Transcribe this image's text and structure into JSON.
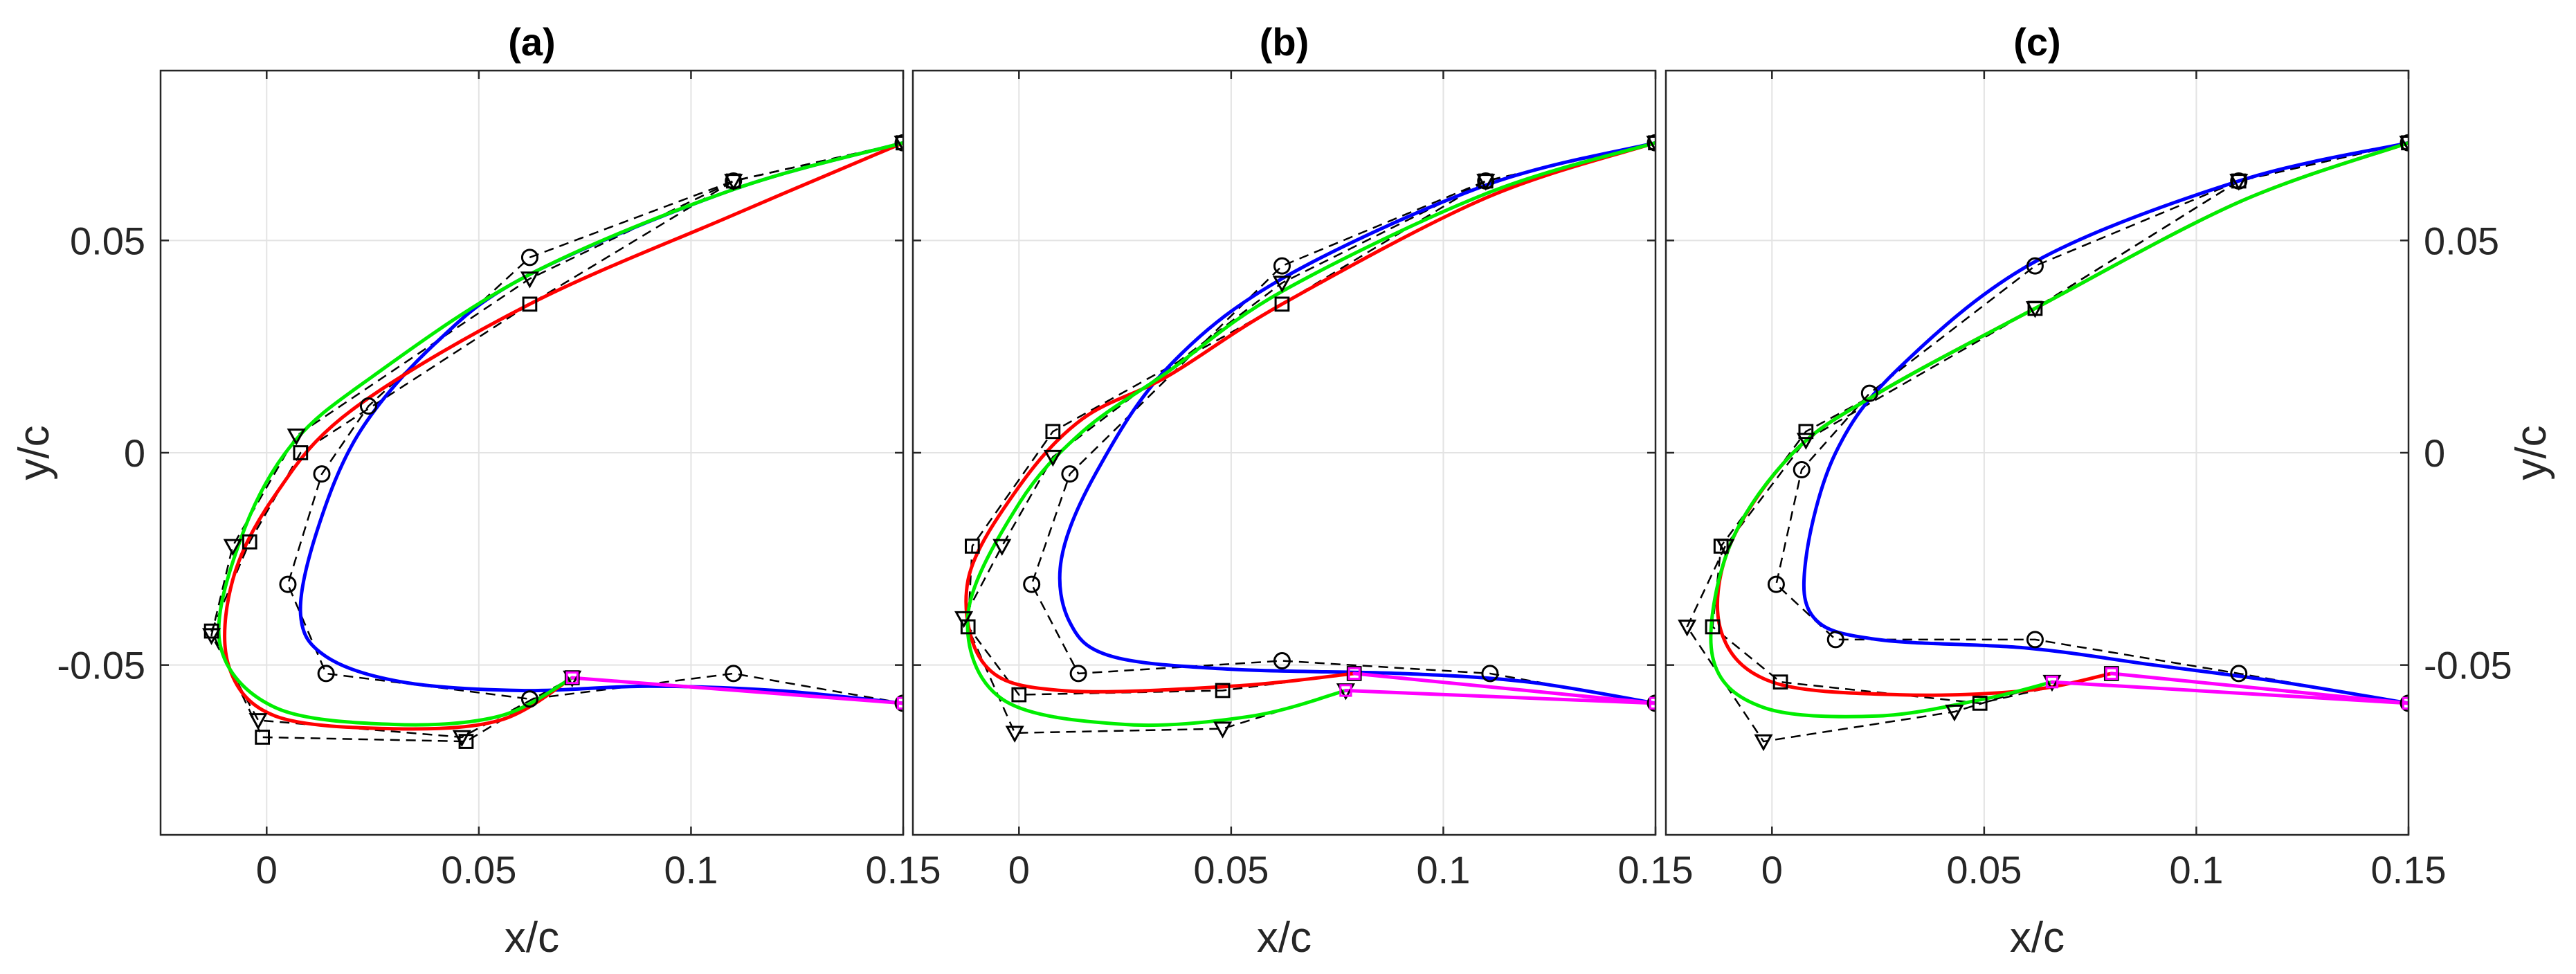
{
  "chart_data": {
    "type": "line",
    "layout": "three panels side by side",
    "xlabel": "x/c",
    "ylabel": "y/c",
    "xlim": [
      -0.025,
      0.15
    ],
    "ylim": [
      -0.09,
      0.09
    ],
    "x_ticks": [
      0,
      0.05,
      0.1,
      0.15
    ],
    "x_tick_labels": [
      "0",
      "0.05",
      "0.1",
      "0.15"
    ],
    "y_ticks": [
      -0.05,
      0,
      0.05
    ],
    "y_tick_labels": [
      "-0.05",
      "0",
      "0.05"
    ],
    "grid": true,
    "colors": {
      "blue": "#0000ff",
      "red": "#ff0000",
      "green": "#00ee00",
      "magenta": "#ff00ff",
      "control": "#000000",
      "grid": "#e3e3e3"
    },
    "panels": [
      {
        "title": "(a)",
        "ylabel_side": "left",
        "curves": [
          {
            "color": "blue",
            "points": [
              [
                0.15,
                0.073
              ],
              [
                0.11,
                0.062
              ],
              [
                0.062,
                0.042
              ],
              [
                0.04,
                0.026
              ],
              [
                0.022,
                0.005
              ],
              [
                0.012,
                -0.018
              ],
              [
                0.008,
                -0.038
              ],
              [
                0.014,
                -0.048
              ],
              [
                0.032,
                -0.054
              ],
              [
                0.06,
                -0.056
              ],
              [
                0.09,
                -0.055
              ],
              [
                0.12,
                -0.056
              ],
              [
                0.15,
                -0.059
              ]
            ]
          },
          {
            "color": "red",
            "points": [
              [
                0.15,
                0.073
              ],
              [
                0.11,
                0.056
              ],
              [
                0.062,
                0.035
              ],
              [
                0.02,
                0.01
              ],
              [
                0.002,
                -0.01
              ],
              [
                -0.008,
                -0.03
              ],
              [
                -0.009,
                -0.05
              ],
              [
                0.002,
                -0.062
              ],
              [
                0.03,
                -0.065
              ],
              [
                0.055,
                -0.063
              ],
              [
                0.072,
                -0.053
              ]
            ]
          },
          {
            "color": "green",
            "points": [
              [
                0.15,
                0.073
              ],
              [
                0.11,
                0.062
              ],
              [
                0.062,
                0.042
              ],
              [
                0.025,
                0.018
              ],
              [
                0.006,
                0.002
              ],
              [
                -0.006,
                -0.02
              ],
              [
                -0.011,
                -0.045
              ],
              [
                0.002,
                -0.06
              ],
              [
                0.03,
                -0.064
              ],
              [
                0.055,
                -0.062
              ],
              [
                0.072,
                -0.053
              ]
            ]
          },
          {
            "color": "magenta",
            "points": [
              [
                0.072,
                -0.053
              ],
              [
                0.15,
                -0.059
              ]
            ]
          }
        ],
        "polygons": [
          {
            "marker": "circle",
            "points": [
              [
                0.15,
                0.073
              ],
              [
                0.11,
                0.064
              ],
              [
                0.062,
                0.046
              ],
              [
                0.024,
                0.011
              ],
              [
                0.013,
                -0.005
              ],
              [
                0.005,
                -0.031
              ],
              [
                0.014,
                -0.052
              ],
              [
                0.062,
                -0.058
              ],
              [
                0.11,
                -0.052
              ],
              [
                0.15,
                -0.059
              ]
            ]
          },
          {
            "marker": "square",
            "points": [
              [
                0.15,
                0.073
              ],
              [
                0.11,
                0.064
              ],
              [
                0.062,
                0.035
              ],
              [
                0.008,
                0.0
              ],
              [
                -0.004,
                -0.021
              ],
              [
                -0.013,
                -0.042
              ],
              [
                -0.001,
                -0.067
              ],
              [
                0.047,
                -0.068
              ],
              [
                0.072,
                -0.053
              ]
            ]
          },
          {
            "marker": "triangle",
            "points": [
              [
                0.15,
                0.073
              ],
              [
                0.11,
                0.064
              ],
              [
                0.062,
                0.041
              ],
              [
                0.007,
                0.004
              ],
              [
                -0.008,
                -0.022
              ],
              [
                -0.013,
                -0.043
              ],
              [
                -0.002,
                -0.063
              ],
              [
                0.046,
                -0.067
              ],
              [
                0.072,
                -0.053
              ]
            ]
          },
          {
            "marker": "square",
            "points": [
              [
                0.15,
                0.073
              ]
            ]
          }
        ],
        "magenta_markers": [
          [
            0.072,
            -0.053
          ],
          [
            0.15,
            -0.059
          ]
        ]
      },
      {
        "title": "(b)",
        "ylabel_side": "none",
        "curves": [
          {
            "color": "blue",
            "points": [
              [
                0.15,
                0.073
              ],
              [
                0.11,
                0.063
              ],
              [
                0.062,
                0.041
              ],
              [
                0.035,
                0.02
              ],
              [
                0.018,
                -0.005
              ],
              [
                0.01,
                -0.025
              ],
              [
                0.012,
                -0.04
              ],
              [
                0.022,
                -0.048
              ],
              [
                0.05,
                -0.051
              ],
              [
                0.09,
                -0.052
              ],
              [
                0.12,
                -0.054
              ],
              [
                0.15,
                -0.059
              ]
            ]
          },
          {
            "color": "red",
            "points": [
              [
                0.15,
                0.073
              ],
              [
                0.11,
                0.06
              ],
              [
                0.062,
                0.035
              ],
              [
                0.035,
                0.018
              ],
              [
                0.015,
                0.008
              ],
              [
                0.0,
                -0.008
              ],
              [
                -0.012,
                -0.03
              ],
              [
                -0.008,
                -0.05
              ],
              [
                0.01,
                -0.056
              ],
              [
                0.05,
                -0.055
              ],
              [
                0.079,
                -0.052
              ]
            ]
          },
          {
            "color": "green",
            "points": [
              [
                0.15,
                0.073
              ],
              [
                0.11,
                0.061
              ],
              [
                0.062,
                0.038
              ],
              [
                0.035,
                0.019
              ],
              [
                0.015,
                0.005
              ],
              [
                0.0,
                -0.012
              ],
              [
                -0.012,
                -0.038
              ],
              [
                -0.004,
                -0.058
              ],
              [
                0.025,
                -0.064
              ],
              [
                0.055,
                -0.062
              ],
              [
                0.077,
                -0.056
              ]
            ]
          },
          {
            "color": "magenta",
            "points": [
              [
                0.079,
                -0.052
              ],
              [
                0.15,
                -0.059
              ]
            ]
          },
          {
            "color": "magenta",
            "points": [
              [
                0.077,
                -0.056
              ],
              [
                0.15,
                -0.059
              ]
            ]
          }
        ],
        "polygons": [
          {
            "marker": "circle",
            "points": [
              [
                0.15,
                0.073
              ],
              [
                0.11,
                0.064
              ],
              [
                0.062,
                0.044
              ],
              [
                0.012,
                -0.005
              ],
              [
                0.003,
                -0.031
              ],
              [
                0.014,
                -0.052
              ],
              [
                0.062,
                -0.049
              ],
              [
                0.111,
                -0.052
              ],
              [
                0.15,
                -0.059
              ]
            ]
          },
          {
            "marker": "square",
            "points": [
              [
                0.15,
                0.073
              ],
              [
                0.11,
                0.064
              ],
              [
                0.062,
                0.035
              ],
              [
                0.008,
                0.005
              ],
              [
                -0.011,
                -0.022
              ],
              [
                -0.012,
                -0.041
              ],
              [
                0.0,
                -0.057
              ],
              [
                0.048,
                -0.056
              ],
              [
                0.079,
                -0.052
              ]
            ]
          },
          {
            "marker": "triangle",
            "points": [
              [
                0.15,
                0.073
              ],
              [
                0.11,
                0.064
              ],
              [
                0.062,
                0.04
              ],
              [
                0.008,
                -0.001
              ],
              [
                -0.004,
                -0.022
              ],
              [
                -0.013,
                -0.039
              ],
              [
                -0.001,
                -0.066
              ],
              [
                0.048,
                -0.065
              ],
              [
                0.077,
                -0.056
              ]
            ]
          }
        ],
        "magenta_markers": [
          [
            0.079,
            -0.052
          ],
          [
            0.077,
            -0.056
          ],
          [
            0.15,
            -0.059
          ]
        ]
      },
      {
        "title": "(c)",
        "ylabel_side": "right",
        "curves": [
          {
            "color": "blue",
            "points": [
              [
                0.15,
                0.073
              ],
              [
                0.11,
                0.064
              ],
              [
                0.062,
                0.045
              ],
              [
                0.03,
                0.02
              ],
              [
                0.015,
                0.0
              ],
              [
                0.008,
                -0.025
              ],
              [
                0.01,
                -0.039
              ],
              [
                0.025,
                -0.044
              ],
              [
                0.06,
                -0.046
              ],
              [
                0.09,
                -0.05
              ],
              [
                0.12,
                -0.054
              ],
              [
                0.15,
                -0.059
              ]
            ]
          },
          {
            "color": "red",
            "points": [
              [
                0.15,
                0.073
              ],
              [
                0.11,
                0.059
              ],
              [
                0.062,
                0.034
              ],
              [
                0.025,
                0.014
              ],
              [
                0.005,
                0.0
              ],
              [
                -0.01,
                -0.022
              ],
              [
                -0.012,
                -0.042
              ],
              [
                0.0,
                -0.054
              ],
              [
                0.03,
                -0.057
              ],
              [
                0.06,
                -0.056
              ],
              [
                0.08,
                -0.052
              ]
            ]
          },
          {
            "color": "green",
            "points": [
              [
                0.15,
                0.073
              ],
              [
                0.11,
                0.059
              ],
              [
                0.062,
                0.034
              ],
              [
                0.025,
                0.014
              ],
              [
                0.005,
                0.0
              ],
              [
                -0.01,
                -0.022
              ],
              [
                -0.014,
                -0.048
              ],
              [
                -0.002,
                -0.06
              ],
              [
                0.025,
                -0.062
              ],
              [
                0.05,
                -0.058
              ],
              [
                0.066,
                -0.054
              ]
            ]
          },
          {
            "color": "magenta",
            "points": [
              [
                0.08,
                -0.052
              ],
              [
                0.15,
                -0.059
              ]
            ]
          },
          {
            "color": "magenta",
            "points": [
              [
                0.066,
                -0.054
              ],
              [
                0.15,
                -0.059
              ]
            ]
          }
        ],
        "polygons": [
          {
            "marker": "circle",
            "points": [
              [
                0.15,
                0.073
              ],
              [
                0.11,
                0.064
              ],
              [
                0.062,
                0.044
              ],
              [
                0.023,
                0.014
              ],
              [
                0.007,
                -0.004
              ],
              [
                0.001,
                -0.031
              ],
              [
                0.015,
                -0.044
              ],
              [
                0.062,
                -0.044
              ],
              [
                0.11,
                -0.052
              ],
              [
                0.15,
                -0.059
              ]
            ]
          },
          {
            "marker": "square",
            "points": [
              [
                0.15,
                0.073
              ],
              [
                0.11,
                0.064
              ],
              [
                0.062,
                0.034
              ],
              [
                0.008,
                0.005
              ],
              [
                -0.012,
                -0.022
              ],
              [
                -0.014,
                -0.041
              ],
              [
                0.002,
                -0.054
              ],
              [
                0.049,
                -0.059
              ],
              [
                0.08,
                -0.052
              ]
            ]
          },
          {
            "marker": "triangle",
            "points": [
              [
                0.15,
                0.073
              ],
              [
                0.11,
                0.064
              ],
              [
                0.062,
                0.034
              ],
              [
                0.008,
                0.003
              ],
              [
                -0.011,
                -0.022
              ],
              [
                -0.02,
                -0.041
              ],
              [
                -0.002,
                -0.068
              ],
              [
                0.043,
                -0.061
              ],
              [
                0.066,
                -0.054
              ]
            ]
          }
        ],
        "magenta_markers": [
          [
            0.08,
            -0.052
          ],
          [
            0.066,
            -0.054
          ],
          [
            0.15,
            -0.059
          ]
        ]
      }
    ]
  }
}
